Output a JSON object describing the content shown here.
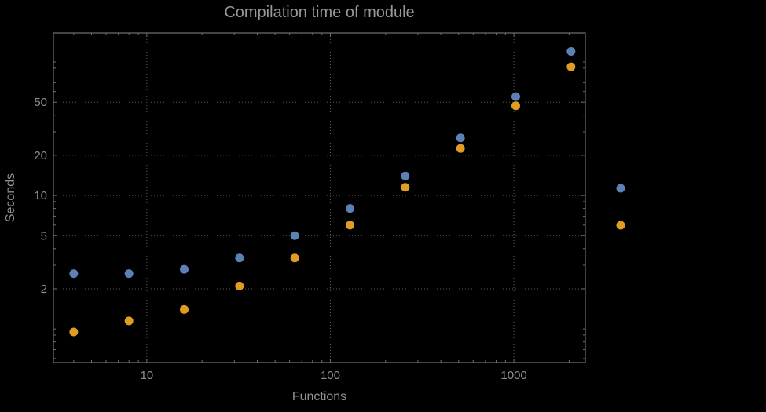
{
  "colors": {
    "background": "#000000",
    "frame": "#707070",
    "grid": "#5c5c5c",
    "text": "#8f8f8f",
    "title": "#989898",
    "series1": "#5E81B5",
    "series2": "#E19C24"
  },
  "chart_data": {
    "type": "scatter",
    "title": "Compilation time of module",
    "xlabel": "Functions",
    "ylabel": "Seconds",
    "x_scale": "log",
    "y_scale": "log",
    "xlim": [
      3.1,
      2450
    ],
    "ylim": [
      0.56,
      165
    ],
    "grid": true,
    "x_ticks": [
      10,
      100,
      1000
    ],
    "y_ticks": [
      2,
      5,
      10,
      20,
      50
    ],
    "x": [
      4,
      8,
      16,
      32,
      64,
      128,
      256,
      512,
      1024,
      2048
    ],
    "series": [
      {
        "name": "blue",
        "color": "#5E81B5",
        "values": [
          2.6,
          2.6,
          2.8,
          3.4,
          5.0,
          8.0,
          14.0,
          27.0,
          55.0,
          120.0
        ]
      },
      {
        "name": "orange",
        "color": "#E19C24",
        "values": [
          0.95,
          1.15,
          1.4,
          2.1,
          3.4,
          6.0,
          11.5,
          22.5,
          47.0,
          92.0
        ]
      }
    ],
    "legend_position": "right",
    "legend_markers": [
      {
        "series": "blue",
        "color": "#5E81B5"
      },
      {
        "series": "orange",
        "color": "#E19C24"
      }
    ]
  }
}
